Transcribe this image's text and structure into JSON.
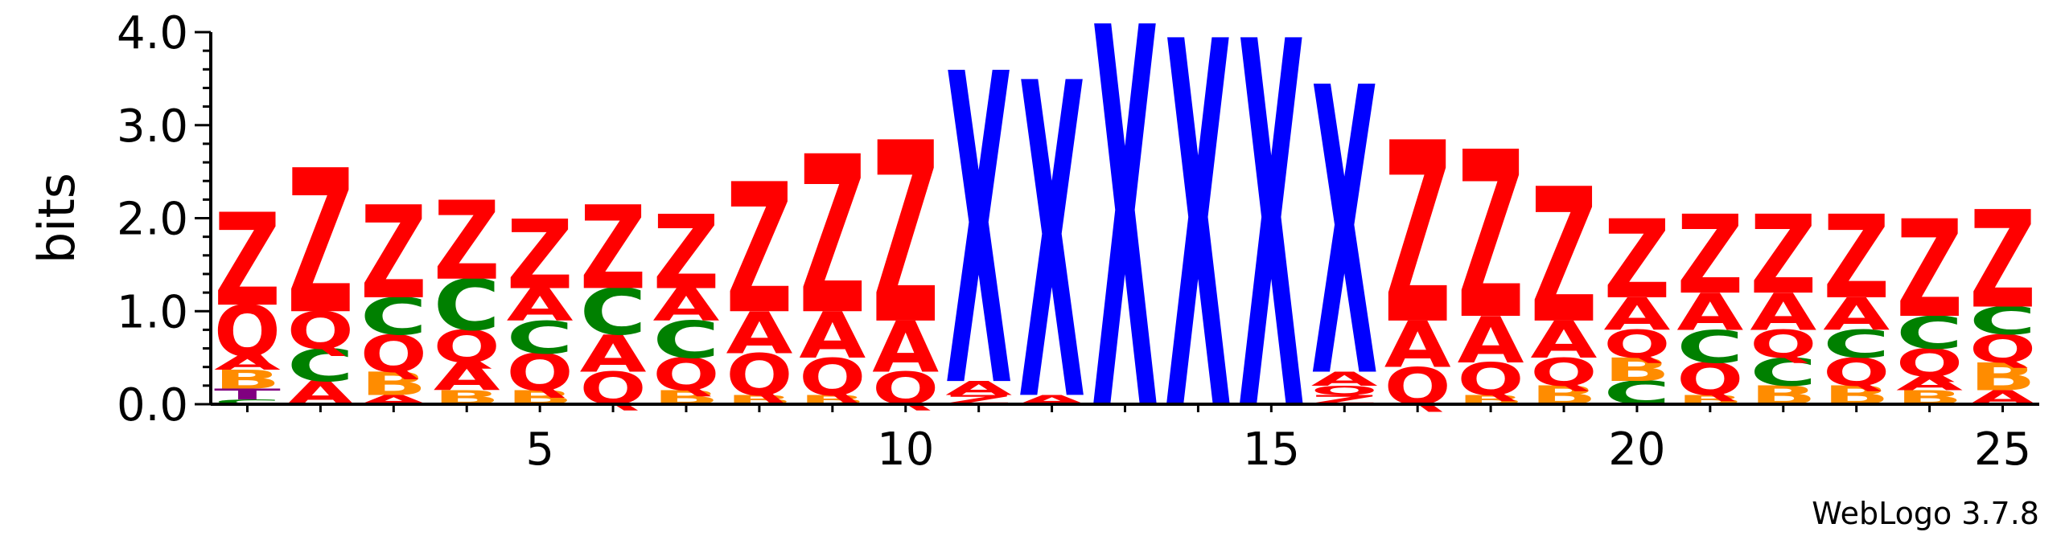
{
  "chart_data": {
    "type": "sequence-logo",
    "ylabel": "bits",
    "ylim": [
      0,
      4.0
    ],
    "yticks": [
      "0.0",
      "1.0",
      "2.0",
      "3.0",
      "4.0"
    ],
    "xticks": [
      5,
      10,
      15,
      20,
      25
    ],
    "credit": "WebLogo 3.7.8",
    "colors": {
      "Z": "#ff0000",
      "X": "#0000ff",
      "A": "#ff0000",
      "Q": "#ff0000",
      "C": "#008000",
      "B": "#ff8c00",
      "T": "#800080"
    },
    "positions": [
      {
        "pos": 1,
        "stack": [
          [
            "C",
            0.05
          ],
          [
            "T",
            0.12
          ],
          [
            "B",
            0.2
          ],
          [
            "A",
            0.15
          ],
          [
            "Q",
            0.55
          ],
          [
            "Z",
            1.0
          ]
        ]
      },
      {
        "pos": 2,
        "stack": [
          [
            "A",
            0.25
          ],
          [
            "C",
            0.35
          ],
          [
            "Q",
            0.4
          ],
          [
            "Z",
            1.55
          ]
        ]
      },
      {
        "pos": 3,
        "stack": [
          [
            "A",
            0.1
          ],
          [
            "B",
            0.25
          ],
          [
            "Q",
            0.4
          ],
          [
            "C",
            0.4
          ],
          [
            "Z",
            1.0
          ]
        ]
      },
      {
        "pos": 4,
        "stack": [
          [
            "B",
            0.15
          ],
          [
            "A",
            0.3
          ],
          [
            "Q",
            0.35
          ],
          [
            "C",
            0.55
          ],
          [
            "Z",
            0.85
          ]
        ]
      },
      {
        "pos": 5,
        "stack": [
          [
            "B",
            0.15
          ],
          [
            "Q",
            0.4
          ],
          [
            "C",
            0.35
          ],
          [
            "A",
            0.35
          ],
          [
            "Z",
            0.75
          ]
        ]
      },
      {
        "pos": 6,
        "stack": [
          [
            "Q",
            0.35
          ],
          [
            "A",
            0.4
          ],
          [
            "C",
            0.5
          ],
          [
            "Z",
            0.9
          ]
        ]
      },
      {
        "pos": 7,
        "stack": [
          [
            "B",
            0.15
          ],
          [
            "Q",
            0.35
          ],
          [
            "C",
            0.4
          ],
          [
            "A",
            0.35
          ],
          [
            "Z",
            0.8
          ]
        ]
      },
      {
        "pos": 8,
        "stack": [
          [
            "B",
            0.1
          ],
          [
            "Q",
            0.45
          ],
          [
            "A",
            0.45
          ],
          [
            "Z",
            1.4
          ]
        ]
      },
      {
        "pos": 9,
        "stack": [
          [
            "B",
            0.1
          ],
          [
            "Q",
            0.4
          ],
          [
            "A",
            0.5
          ],
          [
            "Z",
            1.7
          ]
        ]
      },
      {
        "pos": 10,
        "stack": [
          [
            "Q",
            0.35
          ],
          [
            "A",
            0.55
          ],
          [
            "Z",
            1.95
          ]
        ]
      },
      {
        "pos": 11,
        "stack": [
          [
            "Z",
            0.1
          ],
          [
            "A",
            0.15
          ],
          [
            "X",
            3.35
          ]
        ]
      },
      {
        "pos": 12,
        "stack": [
          [
            "A",
            0.1
          ],
          [
            "X",
            3.4
          ]
        ]
      },
      {
        "pos": 13,
        "stack": [
          [
            "X",
            4.1
          ]
        ]
      },
      {
        "pos": 14,
        "stack": [
          [
            "X",
            3.95
          ]
        ]
      },
      {
        "pos": 15,
        "stack": [
          [
            "X",
            3.95
          ]
        ]
      },
      {
        "pos": 16,
        "stack": [
          [
            "Z",
            0.1
          ],
          [
            "Q",
            0.1
          ],
          [
            "A",
            0.15
          ],
          [
            "X",
            3.1
          ]
        ]
      },
      {
        "pos": 17,
        "stack": [
          [
            "Q",
            0.4
          ],
          [
            "A",
            0.5
          ],
          [
            "Z",
            1.95
          ]
        ]
      },
      {
        "pos": 18,
        "stack": [
          [
            "B",
            0.1
          ],
          [
            "Q",
            0.35
          ],
          [
            "A",
            0.5
          ],
          [
            "Z",
            1.8
          ]
        ]
      },
      {
        "pos": 19,
        "stack": [
          [
            "B",
            0.2
          ],
          [
            "Q",
            0.3
          ],
          [
            "A",
            0.4
          ],
          [
            "Z",
            1.45
          ]
        ]
      },
      {
        "pos": 20,
        "stack": [
          [
            "C",
            0.25
          ],
          [
            "B",
            0.25
          ],
          [
            "Q",
            0.3
          ],
          [
            "A",
            0.35
          ],
          [
            "Z",
            0.85
          ]
        ]
      },
      {
        "pos": 21,
        "stack": [
          [
            "B",
            0.1
          ],
          [
            "Q",
            0.35
          ],
          [
            "C",
            0.35
          ],
          [
            "A",
            0.4
          ],
          [
            "Z",
            0.85
          ]
        ]
      },
      {
        "pos": 22,
        "stack": [
          [
            "B",
            0.2
          ],
          [
            "C",
            0.3
          ],
          [
            "Q",
            0.3
          ],
          [
            "A",
            0.4
          ],
          [
            "Z",
            0.85
          ]
        ]
      },
      {
        "pos": 23,
        "stack": [
          [
            "B",
            0.2
          ],
          [
            "Q",
            0.3
          ],
          [
            "C",
            0.3
          ],
          [
            "A",
            0.35
          ],
          [
            "Z",
            0.9
          ]
        ]
      },
      {
        "pos": 24,
        "stack": [
          [
            "B",
            0.15
          ],
          [
            "A",
            0.15
          ],
          [
            "Q",
            0.3
          ],
          [
            "C",
            0.35
          ],
          [
            "Z",
            1.05
          ]
        ]
      },
      {
        "pos": 25,
        "stack": [
          [
            "A",
            0.15
          ],
          [
            "B",
            0.3
          ],
          [
            "Q",
            0.3
          ],
          [
            "C",
            0.3
          ],
          [
            "Z",
            1.05
          ]
        ]
      }
    ]
  }
}
